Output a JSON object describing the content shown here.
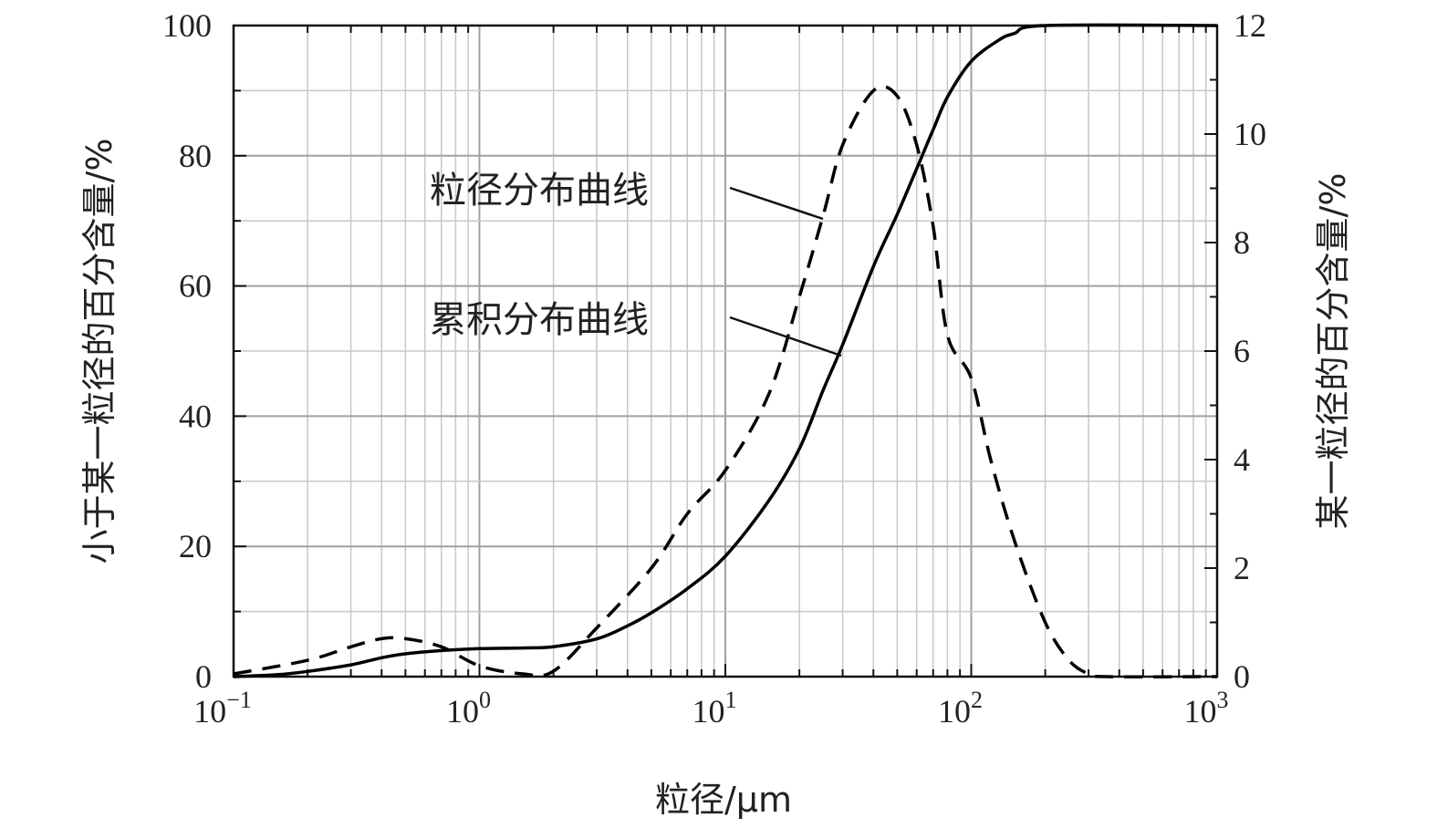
{
  "chart_data": {
    "type": "line",
    "xlabel": "粒径/μm",
    "ylabel_left": "小于某一粒径的百分含量/%",
    "ylabel_right": "某一粒径的百分含量/%",
    "x_scale": "log",
    "xlim": [
      0.1,
      1000
    ],
    "ylim_left": [
      0,
      100
    ],
    "ylim_right": [
      0,
      12
    ],
    "x_ticks": [
      {
        "value": 0.1,
        "base": "10",
        "exp": "−1"
      },
      {
        "value": 1,
        "base": "10",
        "exp": "0"
      },
      {
        "value": 10,
        "base": "10",
        "exp": "1"
      },
      {
        "value": 100,
        "base": "10",
        "exp": "2"
      },
      {
        "value": 1000,
        "base": "10",
        "exp": "3"
      }
    ],
    "y_left_ticks": [
      "0",
      "20",
      "40",
      "60",
      "80",
      "100"
    ],
    "y_right_ticks": [
      "0",
      "2",
      "4",
      "6",
      "8",
      "10",
      "12"
    ],
    "grid": true,
    "series": [
      {
        "name": "累积分布曲线",
        "axis": "left",
        "style": "solid",
        "color": "#000000",
        "points": [
          [
            0.1,
            0
          ],
          [
            0.15,
            0.3
          ],
          [
            0.2,
            0.8
          ],
          [
            0.3,
            1.8
          ],
          [
            0.4,
            2.9
          ],
          [
            0.5,
            3.5
          ],
          [
            0.7,
            4.0
          ],
          [
            1.0,
            4.3
          ],
          [
            1.5,
            4.4
          ],
          [
            2.0,
            4.6
          ],
          [
            3.0,
            5.8
          ],
          [
            4.0,
            7.8
          ],
          [
            5.0,
            9.8
          ],
          [
            7.0,
            13.5
          ],
          [
            10,
            18.5
          ],
          [
            15,
            27
          ],
          [
            20,
            35
          ],
          [
            25,
            44
          ],
          [
            30,
            51
          ],
          [
            40,
            63
          ],
          [
            50,
            71
          ],
          [
            60,
            78
          ],
          [
            70,
            84
          ],
          [
            80,
            89
          ],
          [
            100,
            94.5
          ],
          [
            130,
            97.8
          ],
          [
            150,
            98.8
          ],
          [
            200,
            100
          ],
          [
            1000,
            100
          ]
        ]
      },
      {
        "name": "粒径分布曲线",
        "axis": "right",
        "style": "dashed",
        "color": "#000000",
        "points": [
          [
            0.1,
            0.05
          ],
          [
            0.2,
            0.3
          ],
          [
            0.3,
            0.55
          ],
          [
            0.4,
            0.7
          ],
          [
            0.5,
            0.7
          ],
          [
            0.7,
            0.55
          ],
          [
            1.0,
            0.2
          ],
          [
            1.5,
            0.05
          ],
          [
            2.0,
            0.1
          ],
          [
            3.0,
            0.9
          ],
          [
            5.0,
            2.0
          ],
          [
            7.0,
            3.0
          ],
          [
            10,
            3.8
          ],
          [
            15,
            5.2
          ],
          [
            20,
            7.0
          ],
          [
            25,
            8.5
          ],
          [
            30,
            9.8
          ],
          [
            40,
            10.8
          ],
          [
            50,
            10.7
          ],
          [
            60,
            9.8
          ],
          [
            70,
            8.3
          ],
          [
            80,
            6.3
          ],
          [
            100,
            5.5
          ],
          [
            120,
            4.0
          ],
          [
            150,
            2.5
          ],
          [
            200,
            1.0
          ],
          [
            250,
            0.3
          ],
          [
            300,
            0.05
          ],
          [
            350,
            0
          ],
          [
            1000,
            0
          ]
        ]
      }
    ],
    "annotations": [
      {
        "text": "粒径分布曲线",
        "target_series": "粒径分布曲线"
      },
      {
        "text": "累积分布曲线",
        "target_series": "累积分布曲线"
      }
    ]
  }
}
